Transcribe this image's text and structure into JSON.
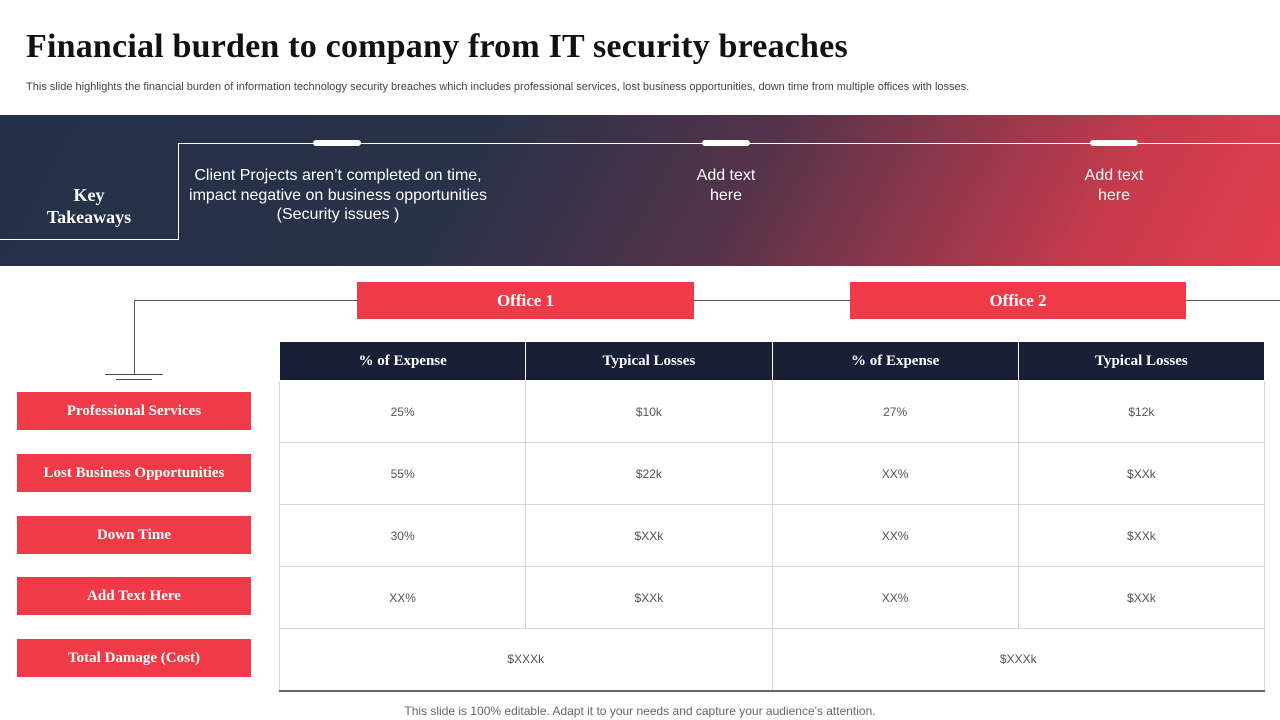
{
  "slide": {
    "title": "Financial burden to company from IT security breaches",
    "subtitle": "This slide highlights the financial burden of information technology security breaches which includes professional services, lost business opportunities, down time from multiple offices with losses.",
    "footer": "This slide is 100% editable. Adapt it to your needs and capture your audience's attention."
  },
  "takeaways": {
    "label_line1": "Key",
    "label_line2": "Takeaways",
    "items": [
      "Client Projects aren’t completed on time, impact negative on business opportunities (Security issues )",
      "Add text here",
      "Add text here"
    ]
  },
  "offices": [
    "Office 1",
    "Office 2"
  ],
  "row_labels": [
    "Professional Services",
    "Lost Business Opportunities",
    "Down Time",
    "Add Text Here",
    "Total Damage (Cost)"
  ],
  "table": {
    "headers": [
      "% of Expense",
      "Typical Losses",
      "% of Expense",
      "Typical Losses"
    ],
    "rows": [
      [
        "25%",
        "$10k",
        "27%",
        "$12k"
      ],
      [
        "55%",
        "$22k",
        "XX%",
        "$XXk"
      ],
      [
        "30%",
        "$XXk",
        "XX%",
        "$XXk"
      ],
      [
        "XX%",
        "$XXk",
        "XX%",
        "$XXk"
      ]
    ],
    "totals": [
      "$XXXk",
      "$XXXk"
    ]
  },
  "colors": {
    "accent_red": "#f03a48",
    "navy": "#1a1f38"
  }
}
